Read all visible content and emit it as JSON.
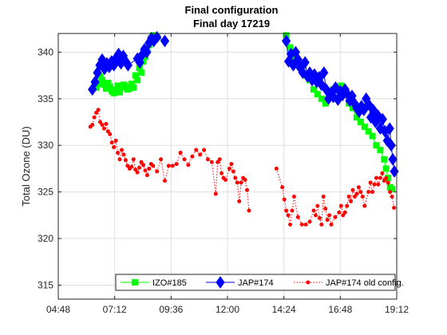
{
  "chart_data": {
    "type": "line",
    "title": "Final configuration",
    "subtitle": "Final day 17219",
    "xlabel": "",
    "ylabel": "Total Ozone (DU)",
    "x_unit": "time of day",
    "xlim": [
      "04:48",
      "19:12"
    ],
    "ylim": [
      313.5,
      342
    ],
    "x_ticks": [
      "04:48",
      "07:12",
      "09:36",
      "12:00",
      "14:24",
      "16:48",
      "19:12"
    ],
    "y_ticks": [
      315,
      320,
      325,
      330,
      335,
      340
    ],
    "grid": true,
    "legend_placement": "bottom-right",
    "series": [
      {
        "name": "IZO#185",
        "color": "#00ff00",
        "marker": "square",
        "line_style": "solid",
        "points": [
          [
            "06:25",
            336.2
          ],
          [
            "06:30",
            336.6
          ],
          [
            "06:35",
            337.4
          ],
          [
            "06:40",
            337.0
          ],
          [
            "06:45",
            336.5
          ],
          [
            "06:50",
            336.1
          ],
          [
            "06:55",
            336.7
          ],
          [
            "07:00",
            336.3
          ],
          [
            "07:05",
            335.8
          ],
          [
            "07:10",
            335.6
          ],
          [
            "07:15",
            336.0
          ],
          [
            "07:20",
            336.4
          ],
          [
            "07:25",
            335.7
          ],
          [
            "07:30",
            336.2
          ],
          [
            "07:35",
            336.5
          ],
          [
            "07:40",
            336.3
          ],
          [
            "07:45",
            336.0
          ],
          [
            "07:50",
            336.1
          ],
          [
            "07:55",
            336.6
          ],
          [
            "08:00",
            336.2
          ],
          [
            "08:05",
            337.5
          ],
          [
            "08:10",
            337.0
          ],
          [
            "08:15",
            338.3
          ],
          [
            "08:20",
            337.8
          ],
          [
            "08:25",
            339.0
          ],
          [
            "08:30",
            339.5
          ],
          [
            "08:35",
            340.2
          ],
          [
            "08:40",
            340.8
          ],
          [
            "08:45",
            341.5
          ],
          [
            "08:50",
            341.8
          ],
          [
            "08:55",
            341.4
          ],
          [
            "09:00",
            341.6
          ],
          [
            "14:30",
            341.8
          ],
          [
            "14:40",
            340.5
          ],
          [
            "14:50",
            339.5
          ],
          [
            "15:00",
            339.0
          ],
          [
            "15:10",
            338.3
          ],
          [
            "15:20",
            337.5
          ],
          [
            "15:30",
            337.0
          ],
          [
            "15:40",
            336.0
          ],
          [
            "15:50",
            335.5
          ],
          [
            "16:00",
            335.0
          ],
          [
            "16:10",
            334.5
          ],
          [
            "16:20",
            335.5
          ],
          [
            "16:30",
            336.0
          ],
          [
            "16:40",
            335.0
          ],
          [
            "16:50",
            336.4
          ],
          [
            "17:00",
            335.5
          ],
          [
            "17:10",
            334.5
          ],
          [
            "17:20",
            334.0
          ],
          [
            "17:30",
            333.0
          ],
          [
            "17:40",
            332.5
          ],
          [
            "17:50",
            332.0
          ],
          [
            "18:00",
            331.5
          ],
          [
            "18:10",
            331.0
          ],
          [
            "18:20",
            330.0
          ],
          [
            "18:30",
            329.5
          ],
          [
            "18:40",
            328.5
          ],
          [
            "18:45",
            327.5
          ],
          [
            "18:50",
            326.5
          ],
          [
            "18:55",
            325.5
          ],
          [
            "19:00",
            325.3
          ]
        ]
      },
      {
        "name": "JAP#174",
        "color": "#0000ff",
        "marker": "diamond",
        "line_style": "solid",
        "points": [
          [
            "06:15",
            336.0
          ],
          [
            "06:22",
            336.8
          ],
          [
            "06:28",
            337.8
          ],
          [
            "06:34",
            338.6
          ],
          [
            "06:40",
            339.2
          ],
          [
            "06:46",
            338.2
          ],
          [
            "06:52",
            338.8
          ],
          [
            "06:58",
            338.4
          ],
          [
            "07:04",
            339.0
          ],
          [
            "07:10",
            338.6
          ],
          [
            "07:16",
            339.4
          ],
          [
            "07:22",
            339.8
          ],
          [
            "07:28",
            338.8
          ],
          [
            "07:34",
            339.6
          ],
          [
            "07:40",
            339.0
          ],
          [
            "07:46",
            338.6
          ],
          [
            "08:10",
            339.3
          ],
          [
            "08:16",
            338.9
          ],
          [
            "08:22",
            339.7
          ],
          [
            "08:28",
            340.3
          ],
          [
            "08:34",
            340.0
          ],
          [
            "08:40",
            341.0
          ],
          [
            "08:46",
            341.5
          ],
          [
            "08:52",
            341.2
          ],
          [
            "09:00",
            341.6
          ],
          [
            "09:20",
            341.2
          ],
          [
            "14:30",
            341.2
          ],
          [
            "14:36",
            339.0
          ],
          [
            "14:42",
            339.8
          ],
          [
            "14:48",
            338.6
          ],
          [
            "14:54",
            340.0
          ],
          [
            "15:00",
            339.2
          ],
          [
            "15:06",
            338.3
          ],
          [
            "15:12",
            337.8
          ],
          [
            "15:18",
            338.9
          ],
          [
            "15:24",
            337.4
          ],
          [
            "15:30",
            337.8
          ],
          [
            "15:36",
            337.0
          ],
          [
            "15:42",
            337.6
          ],
          [
            "15:48",
            336.8
          ],
          [
            "15:54",
            337.3
          ],
          [
            "16:00",
            336.5
          ],
          [
            "16:06",
            337.8
          ],
          [
            "16:12",
            336.0
          ],
          [
            "16:18",
            335.0
          ],
          [
            "16:24",
            335.6
          ],
          [
            "16:30",
            335.2
          ],
          [
            "16:36",
            336.2
          ],
          [
            "16:42",
            334.9
          ],
          [
            "16:48",
            335.8
          ],
          [
            "16:54",
            335.4
          ],
          [
            "17:00",
            336.0
          ],
          [
            "17:06",
            335.5
          ],
          [
            "17:12",
            334.8
          ],
          [
            "17:18",
            335.3
          ],
          [
            "17:24",
            334.5
          ],
          [
            "17:30",
            334.0
          ],
          [
            "17:36",
            333.6
          ],
          [
            "17:42",
            334.2
          ],
          [
            "17:48",
            333.8
          ],
          [
            "17:54",
            335.0
          ],
          [
            "18:00",
            334.4
          ],
          [
            "18:06",
            333.0
          ],
          [
            "18:12",
            333.8
          ],
          [
            "18:18",
            332.5
          ],
          [
            "18:24",
            333.2
          ],
          [
            "18:30",
            331.8
          ],
          [
            "18:36",
            332.8
          ],
          [
            "18:42",
            331.5
          ],
          [
            "18:48",
            330.5
          ],
          [
            "18:54",
            331.8
          ],
          [
            "18:58",
            330.0
          ],
          [
            "19:02",
            328.5
          ],
          [
            "19:06",
            327.2
          ]
        ]
      },
      {
        "name": "JAP#174 old config.",
        "color": "#ff0000",
        "marker": "dot",
        "line_style": "dotted",
        "points": [
          [
            "06:10",
            332.0
          ],
          [
            "06:15",
            332.2
          ],
          [
            "06:20",
            333.0
          ],
          [
            "06:25",
            333.5
          ],
          [
            "06:30",
            333.8
          ],
          [
            "06:35",
            332.5
          ],
          [
            "06:40",
            332.2
          ],
          [
            "06:45",
            331.8
          ],
          [
            "06:50",
            332.3
          ],
          [
            "06:55",
            331.5
          ],
          [
            "07:00",
            331.2
          ],
          [
            "07:05",
            330.3
          ],
          [
            "07:10",
            329.8
          ],
          [
            "07:15",
            330.5
          ],
          [
            "07:20",
            329.2
          ],
          [
            "07:25",
            328.5
          ],
          [
            "07:30",
            329.5
          ],
          [
            "07:35",
            329.0
          ],
          [
            "07:40",
            328.4
          ],
          [
            "07:45",
            327.8
          ],
          [
            "07:50",
            327.5
          ],
          [
            "07:55",
            327.7
          ],
          [
            "08:00",
            328.5
          ],
          [
            "08:05",
            327.4
          ],
          [
            "08:10",
            327.1
          ],
          [
            "08:15",
            327.6
          ],
          [
            "08:20",
            328.2
          ],
          [
            "08:25",
            327.9
          ],
          [
            "08:30",
            327.3
          ],
          [
            "08:35",
            326.8
          ],
          [
            "08:40",
            327.5
          ],
          [
            "08:45",
            328.0
          ],
          [
            "08:50",
            327.8
          ],
          [
            "09:00",
            327.2
          ],
          [
            "09:10",
            328.5
          ],
          [
            "09:20",
            326.2
          ],
          [
            "09:30",
            327.8
          ],
          [
            "09:40",
            327.8
          ],
          [
            "09:50",
            328.0
          ],
          [
            "10:00",
            329.2
          ],
          [
            "10:10",
            328.5
          ],
          [
            "10:20",
            327.9
          ],
          [
            "10:30",
            328.8
          ],
          [
            "10:40",
            329.5
          ],
          [
            "10:50",
            329.0
          ],
          [
            "11:00",
            329.5
          ],
          [
            "11:10",
            328.5
          ],
          [
            "11:20",
            328.2
          ],
          [
            "11:30",
            324.8
          ],
          [
            "11:35",
            328.2
          ],
          [
            "11:40",
            328.5
          ],
          [
            "11:45",
            327.0
          ],
          [
            "11:50",
            326.5
          ],
          [
            "11:55",
            326.3
          ],
          [
            "12:05",
            327.5
          ],
          [
            "12:10",
            328.0
          ],
          [
            "12:15",
            327.2
          ],
          [
            "12:20",
            326.5
          ],
          [
            "12:25",
            326.0
          ],
          [
            "12:30",
            324.0
          ],
          [
            "12:35",
            326.0
          ],
          [
            "12:40",
            326.5
          ],
          [
            "12:45",
            326.3
          ],
          [
            "12:50",
            325.2
          ],
          [
            "12:55",
            323.0
          ],
          [
            "14:05",
            327.5
          ],
          [
            "14:20",
            325.5
          ],
          [
            "14:25",
            324.2
          ],
          [
            "14:30",
            323.0
          ],
          [
            "14:35",
            322.5
          ],
          [
            "14:40",
            321.5
          ],
          [
            "14:45",
            323.0
          ],
          [
            "14:50",
            324.5
          ],
          [
            "15:00",
            322.3
          ],
          [
            "15:10",
            321.5
          ],
          [
            "15:20",
            321.5
          ],
          [
            "15:30",
            321.8
          ],
          [
            "15:40",
            323.0
          ],
          [
            "15:45",
            322.5
          ],
          [
            "15:50",
            323.5
          ],
          [
            "15:55",
            322.2
          ],
          [
            "16:00",
            321.5
          ],
          [
            "16:05",
            324.5
          ],
          [
            "16:10",
            323.2
          ],
          [
            "16:15",
            322.0
          ],
          [
            "16:20",
            322.5
          ],
          [
            "16:25",
            321.5
          ],
          [
            "16:35",
            322.3
          ],
          [
            "16:45",
            322.8
          ],
          [
            "16:50",
            323.5
          ],
          [
            "16:55",
            322.5
          ],
          [
            "17:00",
            322.8
          ],
          [
            "17:05",
            323.5
          ],
          [
            "17:10",
            324.5
          ],
          [
            "17:15",
            324.0
          ],
          [
            "17:20",
            325.2
          ],
          [
            "17:25",
            324.5
          ],
          [
            "17:30",
            324.8
          ],
          [
            "17:35",
            325.5
          ],
          [
            "17:40",
            325.0
          ],
          [
            "17:45",
            324.5
          ],
          [
            "17:50",
            323.5
          ],
          [
            "18:00",
            325.0
          ],
          [
            "18:05",
            326.0
          ],
          [
            "18:10",
            325.0
          ],
          [
            "18:15",
            325.8
          ],
          [
            "18:20",
            326.5
          ],
          [
            "18:25",
            325.8
          ],
          [
            "18:30",
            326.5
          ],
          [
            "18:35",
            327.0
          ],
          [
            "18:40",
            326.2
          ],
          [
            "18:45",
            326.5
          ],
          [
            "18:50",
            326.0
          ],
          [
            "18:55",
            325.0
          ],
          [
            "19:00",
            324.5
          ],
          [
            "19:05",
            323.3
          ]
        ]
      }
    ]
  }
}
